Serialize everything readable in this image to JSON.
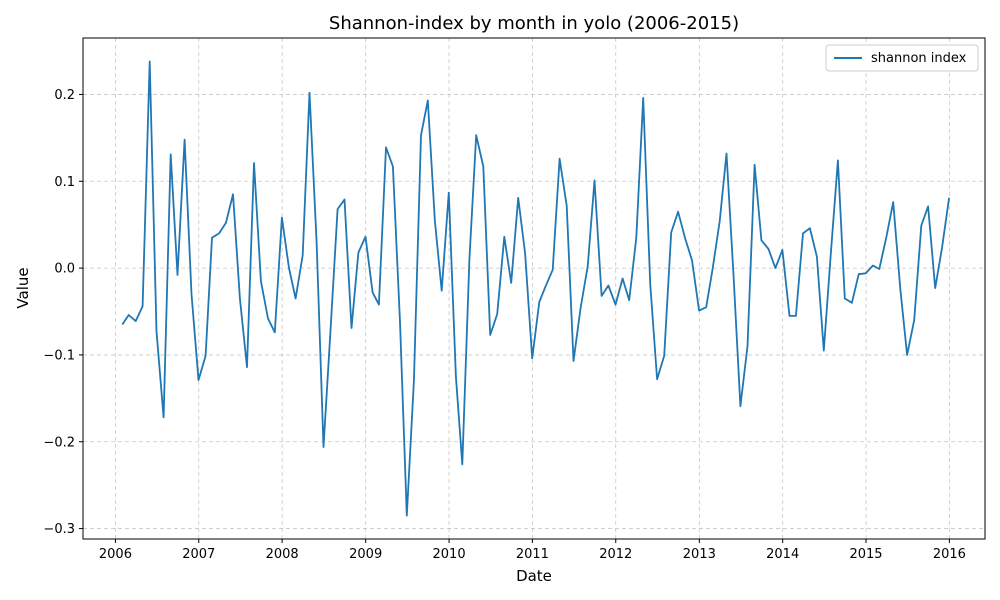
{
  "chart_data": {
    "type": "line",
    "title": "Shannon-index by month in yolo (2006-2015)",
    "xlabel": "Date",
    "ylabel": "Value",
    "x_ticks": [
      "2006",
      "2007",
      "2008",
      "2009",
      "2010",
      "2011",
      "2012",
      "2013",
      "2014",
      "2015",
      "2016"
    ],
    "y_ticks": [
      -0.3,
      -0.2,
      -0.1,
      0.0,
      0.1,
      0.2
    ],
    "y_tick_labels": [
      "−0.3",
      "−0.2",
      "−0.1",
      "0.0",
      "0.1",
      "0.2"
    ],
    "xlim": [
      "2005-08-12",
      "2016-06-05"
    ],
    "ylim": [
      -0.312,
      0.265
    ],
    "grid": true,
    "legend_position": "top-right",
    "color": "#1f77b4",
    "series": [
      {
        "name": "shannon index",
        "x": [
          "2006-01-31",
          "2006-02-28",
          "2006-03-31",
          "2006-04-30",
          "2006-05-31",
          "2006-06-30",
          "2006-07-31",
          "2006-08-31",
          "2006-09-30",
          "2006-10-31",
          "2006-11-30",
          "2006-12-31",
          "2007-01-31",
          "2007-02-28",
          "2007-03-31",
          "2007-04-30",
          "2007-05-31",
          "2007-06-30",
          "2007-07-31",
          "2007-08-31",
          "2007-09-30",
          "2007-10-31",
          "2007-11-30",
          "2007-12-31",
          "2008-01-31",
          "2008-02-29",
          "2008-03-31",
          "2008-04-30",
          "2008-05-31",
          "2008-06-30",
          "2008-07-31",
          "2008-08-31",
          "2008-09-30",
          "2008-10-31",
          "2008-11-30",
          "2008-12-31",
          "2009-01-31",
          "2009-02-28",
          "2009-03-31",
          "2009-04-30",
          "2009-05-31",
          "2009-06-30",
          "2009-07-31",
          "2009-08-31",
          "2009-09-30",
          "2009-10-31",
          "2009-11-30",
          "2009-12-31",
          "2010-01-31",
          "2010-02-28",
          "2010-03-31",
          "2010-04-30",
          "2010-05-31",
          "2010-06-30",
          "2010-07-31",
          "2010-08-31",
          "2010-09-30",
          "2010-10-31",
          "2010-11-30",
          "2010-12-31",
          "2011-01-31",
          "2011-02-28",
          "2011-03-31",
          "2011-04-30",
          "2011-05-31",
          "2011-06-30",
          "2011-07-31",
          "2011-08-31",
          "2011-09-30",
          "2011-10-31",
          "2011-11-30",
          "2011-12-31",
          "2012-01-31",
          "2012-02-29",
          "2012-03-31",
          "2012-04-30",
          "2012-05-31",
          "2012-06-30",
          "2012-07-31",
          "2012-08-31",
          "2012-09-30",
          "2012-10-31",
          "2012-11-30",
          "2012-12-31",
          "2013-01-31",
          "2013-02-28",
          "2013-03-31",
          "2013-04-30",
          "2013-05-31",
          "2013-06-30",
          "2013-07-31",
          "2013-08-31",
          "2013-09-30",
          "2013-10-31",
          "2013-11-30",
          "2013-12-31",
          "2014-01-31",
          "2014-02-28",
          "2014-03-31",
          "2014-04-30",
          "2014-05-31",
          "2014-06-30",
          "2014-07-31",
          "2014-08-31",
          "2014-09-30",
          "2014-10-31",
          "2014-11-30",
          "2014-12-31",
          "2015-01-31",
          "2015-02-28",
          "2015-03-31",
          "2015-04-30",
          "2015-05-31",
          "2015-06-30",
          "2015-07-31",
          "2015-08-31",
          "2015-09-30",
          "2015-10-31",
          "2015-11-30",
          "2015-12-31"
        ],
        "y": [
          -0.065,
          -0.054,
          -0.061,
          -0.044,
          0.238,
          -0.073,
          -0.172,
          0.131,
          -0.008,
          0.148,
          -0.03,
          -0.129,
          -0.101,
          0.035,
          0.04,
          0.052,
          0.085,
          -0.035,
          -0.114,
          0.121,
          -0.015,
          -0.058,
          -0.074,
          0.058,
          0.0,
          -0.035,
          0.015,
          0.202,
          0.03,
          -0.206,
          -0.072,
          0.068,
          0.079,
          -0.069,
          0.018,
          0.036,
          -0.028,
          -0.042,
          0.139,
          0.117,
          -0.062,
          -0.285,
          -0.13,
          0.153,
          0.193,
          0.054,
          -0.026,
          0.087,
          -0.125,
          -0.226,
          0.01,
          0.153,
          0.117,
          -0.077,
          -0.053,
          0.036,
          -0.017,
          0.081,
          0.017,
          -0.104,
          -0.039,
          -0.021,
          -0.002,
          0.126,
          0.072,
          -0.107,
          -0.046,
          0.002,
          0.101,
          -0.032,
          -0.02,
          -0.042,
          -0.012,
          -0.037,
          0.035,
          0.196,
          -0.018,
          -0.128,
          -0.101,
          0.041,
          0.065,
          0.034,
          0.009,
          -0.049,
          -0.045,
          -0.001,
          0.054,
          0.132,
          -0.01,
          -0.159,
          -0.09,
          0.119,
          0.032,
          0.022,
          0.0,
          0.021,
          -0.055,
          -0.055,
          0.04,
          0.046,
          0.013,
          -0.095,
          0.018,
          0.124,
          -0.035,
          -0.04,
          -0.007,
          -0.006,
          0.003,
          -0.001,
          0.036,
          0.076,
          -0.024,
          -0.1,
          -0.06,
          0.049,
          0.071,
          -0.023,
          0.024,
          0.081
        ]
      }
    ]
  }
}
